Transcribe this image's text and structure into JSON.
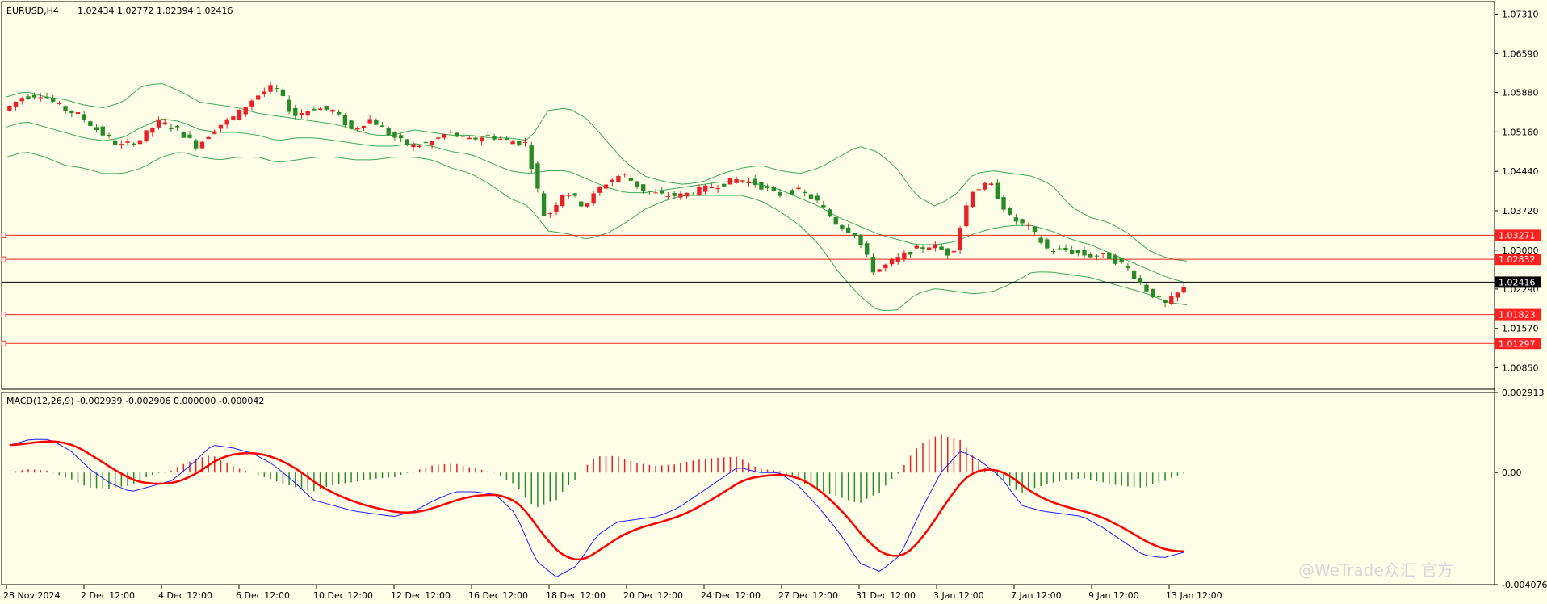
{
  "header": {
    "symbol": "EURUSD,H4",
    "ohlc": "1.02434 1.02772 1.02394 1.02416"
  },
  "macd_header": "MACD(12,26,9) -0.002939 -0.002906 0.000000 -0.000042",
  "watermark": "@WeTrade众汇 官方",
  "colors": {
    "background": "#fefee8",
    "bull": "#e8202a",
    "bear": "#2a8a2a",
    "band": "#3aaa5a",
    "level_line": "#ff2020",
    "macd_main": "#2020ff",
    "macd_signal": "#ff0000"
  },
  "chart_data": [
    {
      "type": "candlestick",
      "title": "EURUSD,H4",
      "ylim": [
        1.0046,
        1.0754
      ],
      "y_ticks": [
        "1.07310",
        "1.06590",
        "1.05880",
        "1.05160",
        "1.04440",
        "1.03720",
        "1.03000",
        "1.02290",
        "1.01570",
        "1.00850"
      ],
      "x_ticks": [
        "28 Nov 2024",
        "2 Dec 12:00",
        "4 Dec 12:00",
        "6 Dec 12:00",
        "10 Dec 12:00",
        "12 Dec 12:00",
        "16 Dec 12:00",
        "18 Dec 12:00",
        "20 Dec 12:00",
        "24 Dec 12:00",
        "27 Dec 12:00",
        "31 Dec 12:00",
        "3 Jan 12:00",
        "7 Jan 12:00",
        "9 Jan 12:00",
        "13 Jan 12:00"
      ],
      "horizontal_levels": [
        {
          "label": "1.03271",
          "value": 1.03271,
          "kind": "level"
        },
        {
          "label": "1.02832",
          "value": 1.02832,
          "kind": "level"
        },
        {
          "label": "1.02416",
          "value": 1.02416,
          "kind": "current"
        },
        {
          "label": "1.01823",
          "value": 1.01823,
          "kind": "level"
        },
        {
          "label": "1.01297",
          "value": 1.01297,
          "kind": "level"
        }
      ],
      "price_path": [
        1.0555,
        1.058,
        1.0585,
        1.056,
        1.0545,
        1.0515,
        1.049,
        1.05,
        1.0535,
        1.052,
        1.049,
        1.0525,
        1.0545,
        1.058,
        1.06,
        1.0545,
        1.056,
        1.0555,
        1.052,
        1.054,
        1.051,
        1.049,
        1.0495,
        1.0515,
        1.05,
        1.051,
        1.05,
        1.0495,
        1.0355,
        1.041,
        1.038,
        1.042,
        1.044,
        1.041,
        1.04,
        1.04,
        1.041,
        1.042,
        1.043,
        1.042,
        1.04,
        1.041,
        1.039,
        1.035,
        1.033,
        1.026,
        1.028,
        1.03,
        1.031,
        1.029,
        1.041,
        1.042,
        1.036,
        1.034,
        1.03,
        1.03,
        1.029,
        1.029,
        1.027,
        1.023,
        1.02,
        1.023
      ],
      "bollinger_upper": [
        1.058,
        1.059,
        1.058,
        1.0575,
        1.0565,
        1.056,
        1.057,
        1.06,
        1.0605,
        1.059,
        1.057,
        1.0565,
        1.056,
        1.055,
        1.0545,
        1.054,
        1.0535,
        1.053,
        1.052,
        1.051,
        1.051,
        1.052,
        1.0515,
        1.051,
        1.051,
        1.0505,
        1.0505,
        1.05,
        1.0555,
        1.056,
        1.054,
        1.05,
        1.046,
        1.0435,
        1.0425,
        1.042,
        1.0425,
        1.044,
        1.045,
        1.0455,
        1.0445,
        1.044,
        1.045,
        1.047,
        1.049,
        1.048,
        1.045,
        1.04,
        1.038,
        1.04,
        1.044,
        1.0445,
        1.044,
        1.0435,
        1.042,
        1.038,
        1.036,
        1.035,
        1.033,
        1.03,
        1.0285,
        1.028
      ],
      "bollinger_mid": [
        1.0525,
        1.0535,
        1.0525,
        1.0515,
        1.0505,
        1.05,
        1.0505,
        1.0525,
        1.054,
        1.0535,
        1.052,
        1.0515,
        1.0515,
        1.051,
        1.05,
        1.0505,
        1.0505,
        1.05,
        1.0495,
        1.049,
        1.049,
        1.0495,
        1.049,
        1.048,
        1.0475,
        1.046,
        1.0445,
        1.044,
        1.0445,
        1.0445,
        1.043,
        1.0415,
        1.0405,
        1.0405,
        1.041,
        1.0415,
        1.042,
        1.0425,
        1.0425,
        1.042,
        1.041,
        1.0395,
        1.038,
        1.036,
        1.0345,
        1.033,
        1.032,
        1.031,
        1.031,
        1.0315,
        1.033,
        1.034,
        1.0345,
        1.0345,
        1.0335,
        1.032,
        1.031,
        1.0295,
        1.028,
        1.0265,
        1.025,
        1.024
      ],
      "bollinger_lower": [
        1.047,
        1.048,
        1.047,
        1.0455,
        1.045,
        1.044,
        1.044,
        1.045,
        1.047,
        1.048,
        1.047,
        1.0465,
        1.047,
        1.047,
        1.046,
        1.0465,
        1.047,
        1.047,
        1.0465,
        1.0465,
        1.047,
        1.047,
        1.0465,
        1.045,
        1.044,
        1.042,
        1.0395,
        1.038,
        1.0335,
        1.033,
        1.032,
        1.033,
        1.035,
        1.0375,
        1.039,
        1.04,
        1.04,
        1.04,
        1.04,
        1.039,
        1.037,
        1.0345,
        1.031,
        1.026,
        1.022,
        1.019,
        1.019,
        1.022,
        1.023,
        1.0225,
        1.022,
        1.0225,
        1.024,
        1.026,
        1.026,
        1.0255,
        1.025,
        1.024,
        1.023,
        1.022,
        1.0205,
        1.02
      ]
    },
    {
      "type": "macd",
      "title": "MACD(12,26,9)",
      "ylim": [
        -0.004076,
        0.002913
      ],
      "y_ticks": [
        "0.002913",
        "0.00",
        "-0.004076"
      ],
      "main": [
        0.001,
        0.0012,
        0.0012,
        0.0008,
        0.0001,
        -0.0004,
        -0.0007,
        -0.0005,
        -0.0003,
        0.0003,
        0.001,
        0.0009,
        0.0007,
        0.0003,
        -0.0003,
        -0.001,
        -0.0012,
        -0.0014,
        -0.0015,
        -0.0016,
        -0.0014,
        -0.001,
        -0.0007,
        -0.0007,
        -0.0008,
        -0.0015,
        -0.0032,
        -0.0038,
        -0.0034,
        -0.0023,
        -0.0018,
        -0.0017,
        -0.0016,
        -0.0013,
        -0.0008,
        -0.0003,
        0.0002,
        0.0,
        0.0,
        -0.0005,
        -0.0013,
        -0.0022,
        -0.0033,
        -0.0036,
        -0.003,
        -0.0014,
        0.0,
        0.0008,
        0.0004,
        -0.0002,
        -0.0012,
        -0.0014,
        -0.0015,
        -0.0016,
        -0.002,
        -0.0025,
        -0.003,
        -0.0031,
        -0.0029
      ]
    }
  ]
}
